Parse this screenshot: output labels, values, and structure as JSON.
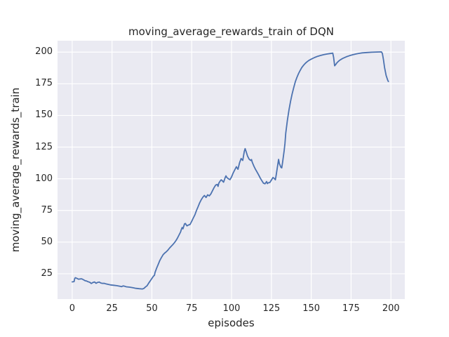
{
  "chart_data": {
    "type": "line",
    "title": "moving_average_rewards_train of DQN",
    "xlabel": "episodes",
    "ylabel": "moving_average_rewards_train",
    "x_ticks": [
      0,
      25,
      50,
      75,
      100,
      125,
      150,
      175,
      200
    ],
    "y_ticks": [
      25,
      50,
      75,
      100,
      125,
      150,
      175,
      200
    ],
    "xlim": [
      -9.2,
      208.7
    ],
    "ylim": [
      5.0,
      209.0
    ],
    "grid": true,
    "legend_position": "none",
    "colors": {
      "axes_background": "#eaeaf2",
      "gridline": "#ffffff",
      "line": "#4c72b0",
      "text": "#262626",
      "figure_background": "#ffffff"
    },
    "series": [
      {
        "name": "moving_average_rewards_train",
        "color": "#4c72b0",
        "points": [
          [
            0,
            18.6
          ],
          [
            1.2,
            18.8
          ],
          [
            1.6,
            21.2
          ],
          [
            2,
            21.9
          ],
          [
            3,
            21.3
          ],
          [
            4,
            20.7
          ],
          [
            5,
            20.9
          ],
          [
            6,
            21.0
          ],
          [
            7,
            20.3
          ],
          [
            8,
            19.6
          ],
          [
            9,
            19.3
          ],
          [
            10,
            18.7
          ],
          [
            11,
            18.3
          ],
          [
            12,
            17.3
          ],
          [
            13,
            18.1
          ],
          [
            14,
            18.5
          ],
          [
            15,
            17.5
          ],
          [
            16,
            18.2
          ],
          [
            17,
            18.4
          ],
          [
            18,
            17.7
          ],
          [
            19,
            17.4
          ],
          [
            20,
            17.5
          ],
          [
            21,
            17.1
          ],
          [
            22,
            16.8
          ],
          [
            23,
            16.5
          ],
          [
            24,
            16.2
          ],
          [
            26,
            15.9
          ],
          [
            28,
            15.6
          ],
          [
            30,
            15.1
          ],
          [
            31,
            14.8
          ],
          [
            32,
            15.4
          ],
          [
            33,
            15.1
          ],
          [
            34,
            14.7
          ],
          [
            36,
            14.4
          ],
          [
            38,
            14.0
          ],
          [
            40,
            13.5
          ],
          [
            42,
            13.2
          ],
          [
            44,
            13.0
          ],
          [
            45,
            13.4
          ],
          [
            46,
            14.6
          ],
          [
            47,
            15.6
          ],
          [
            48,
            17.6
          ],
          [
            49,
            19.4
          ],
          [
            50,
            21.3
          ],
          [
            51,
            23.2
          ],
          [
            51.6,
            23.7
          ],
          [
            52,
            26.0
          ],
          [
            53,
            29.5
          ],
          [
            54,
            32.5
          ],
          [
            55,
            35.5
          ],
          [
            56,
            37.8
          ],
          [
            57,
            40.0
          ],
          [
            58,
            41.3
          ],
          [
            59,
            42.3
          ],
          [
            60,
            43.6
          ],
          [
            61,
            45.2
          ],
          [
            62,
            46.5
          ],
          [
            63,
            47.8
          ],
          [
            64,
            49.3
          ],
          [
            65,
            51.0
          ],
          [
            66,
            53.0
          ],
          [
            67,
            55.5
          ],
          [
            68,
            58.0
          ],
          [
            68.5,
            60.0
          ],
          [
            69,
            61.5
          ],
          [
            69.5,
            60.5
          ],
          [
            70,
            62.5
          ],
          [
            70.5,
            64.5
          ],
          [
            71,
            64.7
          ],
          [
            72,
            62.8
          ],
          [
            73,
            63.5
          ],
          [
            74,
            64.0
          ],
          [
            75,
            66.5
          ],
          [
            76,
            69.0
          ],
          [
            77,
            71.5
          ],
          [
            78,
            75.0
          ],
          [
            79,
            78.0
          ],
          [
            80,
            81.0
          ],
          [
            81,
            83.5
          ],
          [
            82,
            85.5
          ],
          [
            83,
            86.8
          ],
          [
            84,
            85.2
          ],
          [
            85,
            87.3
          ],
          [
            86,
            86.5
          ],
          [
            87,
            88.0
          ],
          [
            88,
            90.5
          ],
          [
            89,
            93.0
          ],
          [
            90,
            95.0
          ],
          [
            91,
            95.5
          ],
          [
            91.5,
            94.0
          ],
          [
            92,
            96.5
          ],
          [
            93,
            98.5
          ],
          [
            93.5,
            99.2
          ],
          [
            94,
            98.7
          ],
          [
            95,
            97.3
          ],
          [
            96,
            101.0
          ],
          [
            96.5,
            102.3
          ],
          [
            97,
            101.0
          ],
          [
            98,
            100.0
          ],
          [
            99,
            99.3
          ],
          [
            100,
            101.5
          ],
          [
            101,
            104.5
          ],
          [
            102,
            107.0
          ],
          [
            103,
            109.5
          ],
          [
            104,
            107.5
          ],
          [
            105,
            112.5
          ],
          [
            106,
            116.0
          ],
          [
            107,
            114.5
          ],
          [
            108,
            121.5
          ],
          [
            108.5,
            123.8
          ],
          [
            109,
            122.0
          ],
          [
            110,
            118.0
          ],
          [
            111,
            115.5
          ],
          [
            112,
            114.5
          ],
          [
            112.5,
            115.2
          ],
          [
            113,
            113.0
          ],
          [
            114,
            110.0
          ],
          [
            115,
            107.5
          ],
          [
            116,
            105.3
          ],
          [
            117,
            103.0
          ],
          [
            118,
            100.5
          ],
          [
            119,
            98.5
          ],
          [
            120,
            96.5
          ],
          [
            121,
            96.0
          ],
          [
            122,
            97.8
          ],
          [
            122.5,
            96.2
          ],
          [
            123,
            96.8
          ],
          [
            124,
            97.0
          ],
          [
            125,
            99.0
          ],
          [
            126,
            101.0
          ],
          [
            127,
            100.0
          ],
          [
            127.5,
            99.2
          ],
          [
            128,
            103.0
          ],
          [
            129,
            111.0
          ],
          [
            129.5,
            115.3
          ],
          [
            130,
            112.0
          ],
          [
            131,
            109.0
          ],
          [
            131.5,
            108.6
          ],
          [
            132,
            113.0
          ],
          [
            133,
            122.0
          ],
          [
            133.5,
            128.0
          ],
          [
            134,
            136.0
          ],
          [
            135,
            146.0
          ],
          [
            136,
            154.0
          ],
          [
            137,
            161.0
          ],
          [
            138,
            167.0
          ],
          [
            139,
            172.0
          ],
          [
            140,
            176.5
          ],
          [
            141,
            180.0
          ],
          [
            142,
            183.0
          ],
          [
            143,
            185.5
          ],
          [
            144,
            187.7
          ],
          [
            145,
            189.4
          ],
          [
            146,
            190.8
          ],
          [
            147,
            192.0
          ],
          [
            148,
            193.0
          ],
          [
            149,
            193.8
          ],
          [
            150,
            194.5
          ],
          [
            152,
            195.7
          ],
          [
            154,
            196.7
          ],
          [
            156,
            197.4
          ],
          [
            158,
            198.0
          ],
          [
            160,
            198.5
          ],
          [
            162,
            198.9
          ],
          [
            163.5,
            199.2
          ],
          [
            164,
            196.0
          ],
          [
            164.7,
            189.2
          ],
          [
            165.5,
            190.5
          ],
          [
            166,
            191.4
          ],
          [
            167,
            192.7
          ],
          [
            168,
            193.7
          ],
          [
            169,
            194.5
          ],
          [
            170,
            195.2
          ],
          [
            172,
            196.3
          ],
          [
            174,
            197.2
          ],
          [
            176,
            197.9
          ],
          [
            178,
            198.5
          ],
          [
            180,
            199.0
          ],
          [
            182,
            199.4
          ],
          [
            185,
            199.7
          ],
          [
            188,
            199.9
          ],
          [
            191,
            200.1
          ],
          [
            194,
            200.2
          ],
          [
            194.6,
            199.0
          ],
          [
            195.3,
            194.0
          ],
          [
            196,
            188.0
          ],
          [
            197,
            181.5
          ],
          [
            198,
            177.8
          ],
          [
            198.4,
            176.8
          ]
        ]
      }
    ]
  }
}
